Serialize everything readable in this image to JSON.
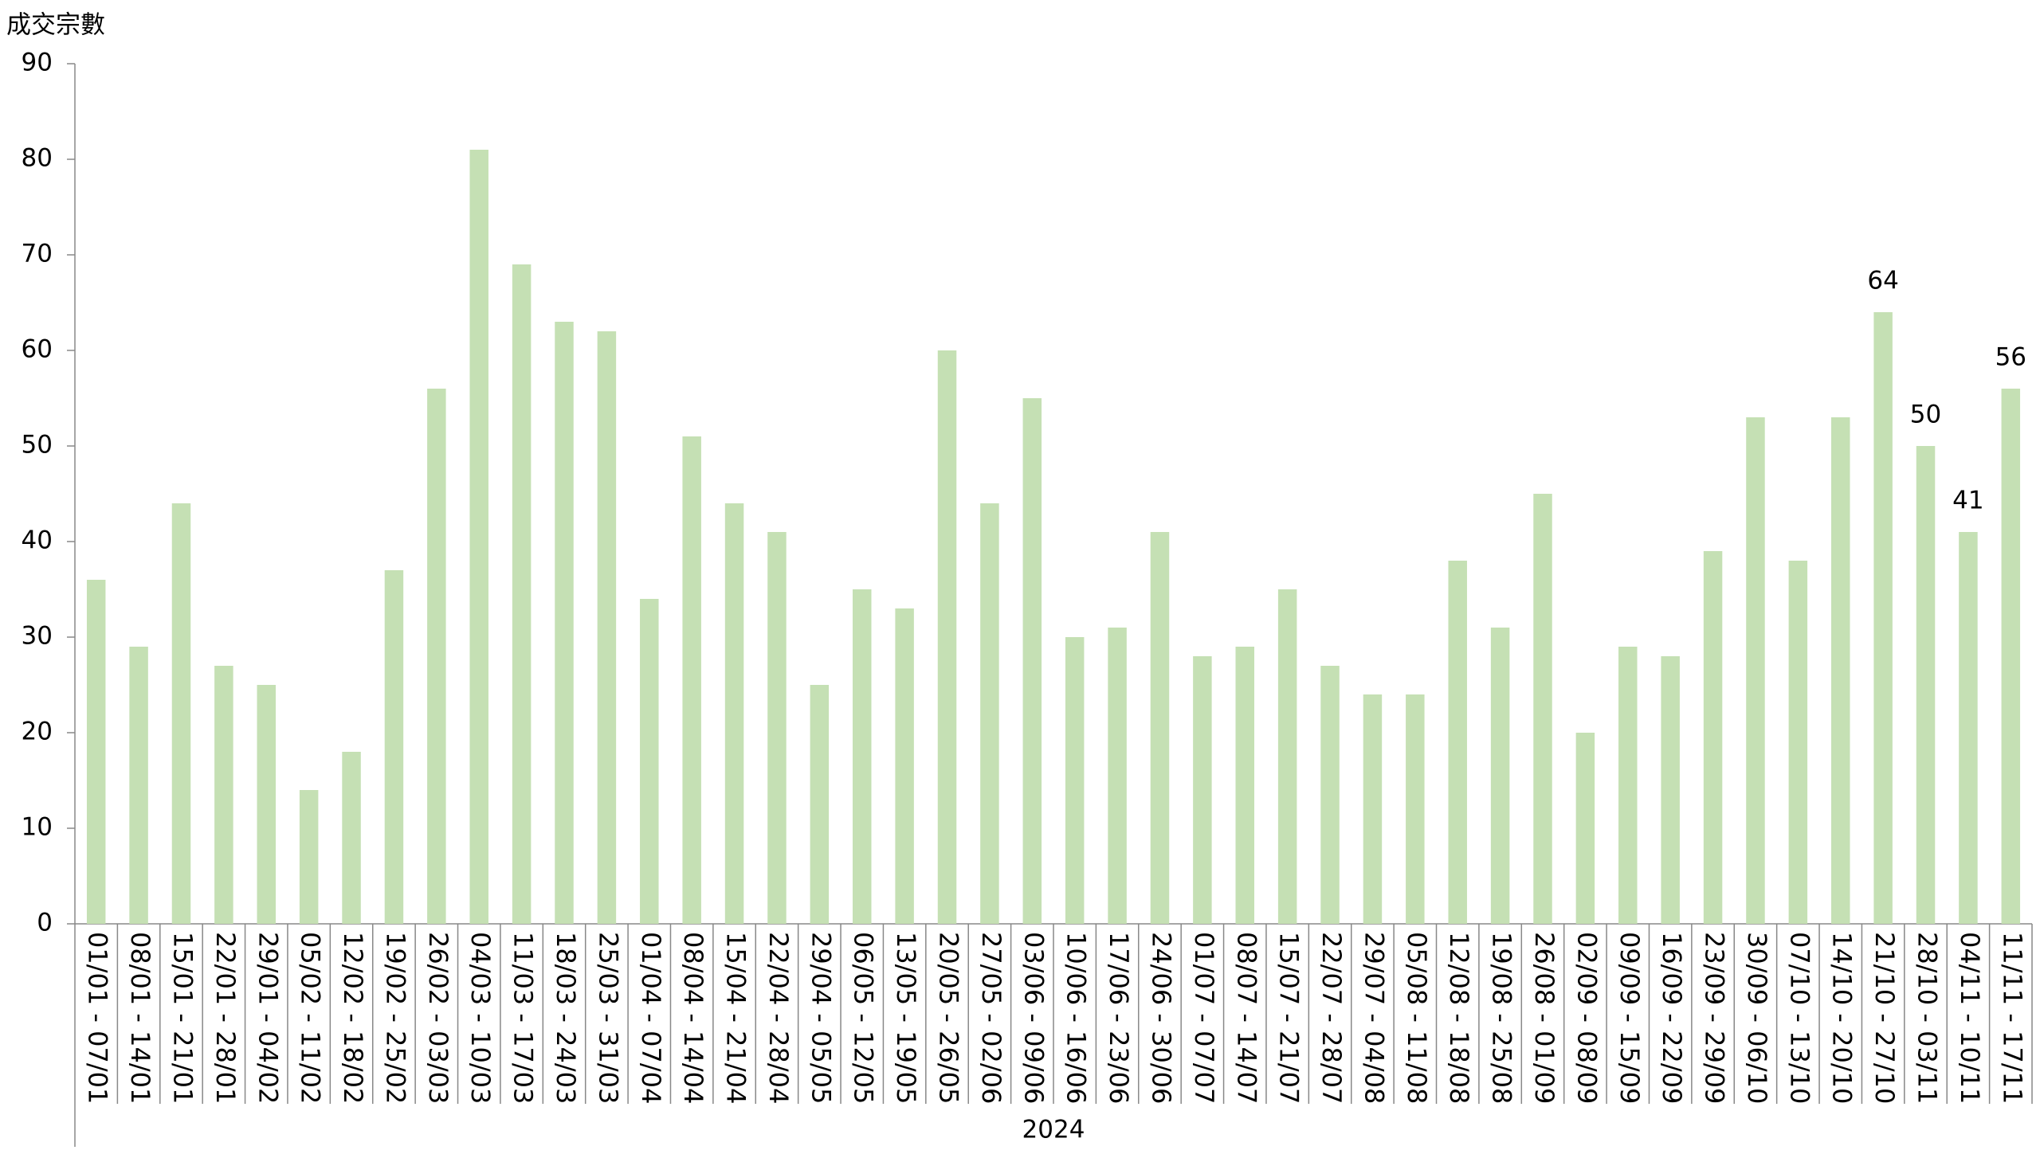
{
  "chart_data": {
    "type": "bar",
    "y_axis_title": "成交宗數",
    "x_axis_title": "2024",
    "categories": [
      "01/01 - 07/01",
      "08/01 - 14/01",
      "15/01 - 21/01",
      "22/01 - 28/01",
      "29/01 - 04/02",
      "05/02 - 11/02",
      "12/02 - 18/02",
      "19/02 - 25/02",
      "26/02 - 03/03",
      "04/03 - 10/03",
      "11/03 - 17/03",
      "18/03 - 24/03",
      "25/03 - 31/03",
      "01/04 - 07/04",
      "08/04 - 14/04",
      "15/04 - 21/04",
      "22/04 - 28/04",
      "29/04 - 05/05",
      "06/05 - 12/05",
      "13/05 - 19/05",
      "20/05 - 26/05",
      "27/05 - 02/06",
      "03/06 - 09/06",
      "10/06 - 16/06",
      "17/06 - 23/06",
      "24/06 - 30/06",
      "01/07 - 07/07",
      "08/07 - 14/07",
      "15/07 - 21/07",
      "22/07 - 28/07",
      "29/07 - 04/08",
      "05/08 - 11/08",
      "12/08 - 18/08",
      "19/08 - 25/08",
      "26/08 - 01/09",
      "02/09 - 08/09",
      "09/09 - 15/09",
      "16/09 - 22/09",
      "23/09 - 29/09",
      "30/09 - 06/10",
      "07/10 - 13/10",
      "14/10 - 20/10",
      "21/10 - 27/10",
      "28/10 - 03/11",
      "04/11 - 10/11",
      "11/11 - 17/11"
    ],
    "values": [
      36,
      29,
      44,
      27,
      25,
      14,
      18,
      37,
      56,
      81,
      69,
      63,
      62,
      34,
      51,
      44,
      41,
      25,
      35,
      33,
      60,
      44,
      55,
      30,
      31,
      41,
      28,
      29,
      35,
      27,
      24,
      24,
      38,
      31,
      45,
      20,
      29,
      28,
      39,
      53,
      38,
      53,
      64,
      50,
      41,
      56
    ],
    "show_labels": [
      false,
      false,
      false,
      false,
      false,
      false,
      false,
      false,
      false,
      false,
      false,
      false,
      false,
      false,
      false,
      false,
      false,
      false,
      false,
      false,
      false,
      false,
      false,
      false,
      false,
      false,
      false,
      false,
      false,
      false,
      false,
      false,
      false,
      false,
      false,
      false,
      false,
      false,
      false,
      false,
      false,
      false,
      true,
      true,
      true,
      true
    ],
    "color": "#c5e0b4",
    "ylim": [
      0,
      90
    ],
    "yticks": [
      0,
      10,
      20,
      30,
      40,
      50,
      60,
      70,
      80,
      90
    ],
    "grid": false
  }
}
